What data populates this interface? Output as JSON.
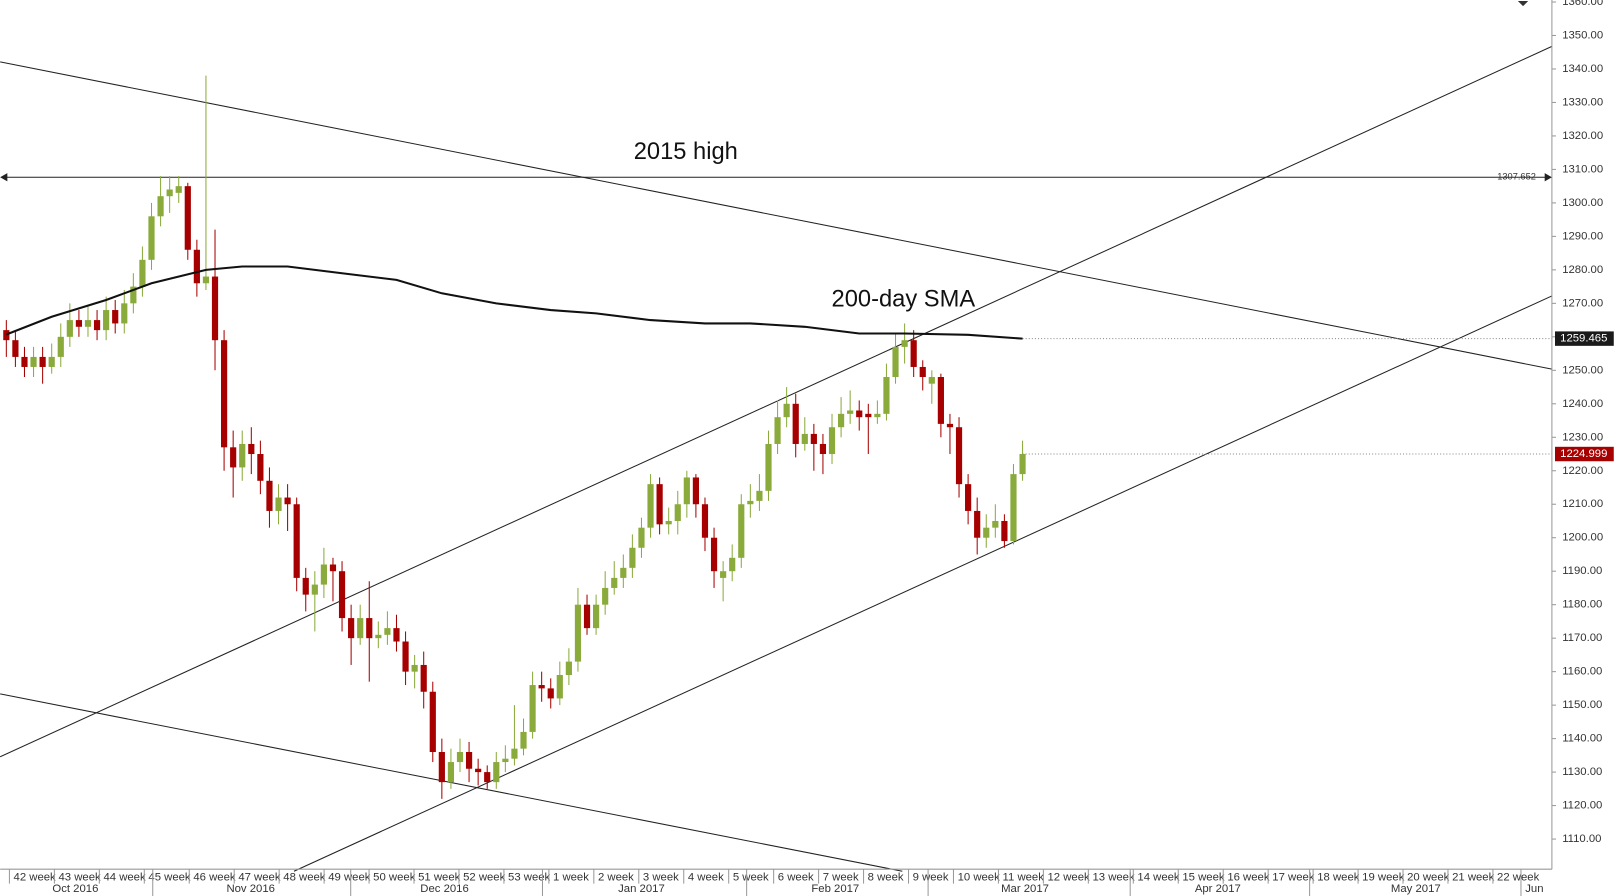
{
  "chart_data": {
    "type": "candlestick",
    "up_color": "#8aab3c",
    "down_color": "#a60000",
    "ylim": [
      1101,
      1360.6
    ],
    "yticks": [
      {
        "value": 1110,
        "label": "1110.00"
      },
      {
        "value": 1120,
        "label": "1120.00"
      },
      {
        "value": 1130,
        "label": "1130.00"
      },
      {
        "value": 1140,
        "label": "1140.00"
      },
      {
        "value": 1150,
        "label": "1150.00"
      },
      {
        "value": 1160,
        "label": "1160.00"
      },
      {
        "value": 1170,
        "label": "1170.00"
      },
      {
        "value": 1180,
        "label": "1180.00"
      },
      {
        "value": 1190,
        "label": "1190.00"
      },
      {
        "value": 1200,
        "label": "1200.00"
      },
      {
        "value": 1210,
        "label": "1210.00"
      },
      {
        "value": 1220,
        "label": "1220.00"
      },
      {
        "value": 1230,
        "label": "1230.00"
      },
      {
        "value": 1240,
        "label": "1240.00"
      },
      {
        "value": 1250,
        "label": "1250.00"
      },
      {
        "value": 1260,
        "label": "1260.00"
      },
      {
        "value": 1270,
        "label": "1270.00"
      },
      {
        "value": 1280,
        "label": "1280.00"
      },
      {
        "value": 1290,
        "label": "1290.00"
      },
      {
        "value": 1300,
        "label": "1300.00"
      },
      {
        "value": 1310,
        "label": "1310.00"
      },
      {
        "value": 1320,
        "label": "1320.00"
      },
      {
        "value": 1330,
        "label": "1330.00"
      },
      {
        "value": 1340,
        "label": "1340.00"
      },
      {
        "value": 1350,
        "label": "1350.00"
      },
      {
        "value": 1360,
        "label": "1360.00"
      }
    ],
    "x_axis": {
      "weeks": [
        "42 week",
        "43 week",
        "44 week",
        "45 week",
        "46 week",
        "47 week",
        "48 week",
        "49 week",
        "50 week",
        "51 week",
        "52 week",
        "53 week",
        "1 week",
        "2 week",
        "3 week",
        "4 week",
        "5 week",
        "6 week",
        "7 week",
        "8 week",
        "9 week",
        "10 week",
        "11 week",
        "12 week",
        "13 week",
        "14 week",
        "15 week",
        "16 week",
        "17 week",
        "18 week",
        "19 week",
        "20 week",
        "21 week",
        "22 week"
      ],
      "months": [
        "Oct 2016",
        "Nov 2016",
        "Dec 2016",
        "Jan 2017",
        "Feb 2017",
        "Mar 2017",
        "Apr 2017",
        "May 2017",
        "Jun"
      ]
    },
    "open": [
      1262,
      1259,
      1254,
      1251,
      1254,
      1251,
      1254,
      1260,
      1265,
      1263,
      1265,
      1262,
      1268,
      1264,
      1270,
      1275,
      1283,
      1296,
      1302,
      1303,
      1305,
      1286,
      1276,
      1278,
      1259,
      1227,
      1221,
      1228,
      1225,
      1217,
      1208,
      1212,
      1210,
      1188,
      1183,
      1186,
      1192,
      1190,
      1176,
      1170,
      1176,
      1170,
      1171,
      1173,
      1169,
      1160,
      1162,
      1154,
      1136,
      1127,
      1133,
      1136,
      1131,
      1130,
      1127,
      1133,
      1134,
      1137,
      1142,
      1156,
      1155,
      1152,
      1159,
      1163,
      1180,
      1173,
      1180,
      1185,
      1188,
      1191,
      1197,
      1203,
      1216,
      1204,
      1205,
      1210,
      1218,
      1210,
      1200,
      1188,
      1190,
      1194,
      1210,
      1211,
      1214,
      1228,
      1236,
      1240,
      1228,
      1231,
      1228,
      1225,
      1233,
      1237,
      1238,
      1237,
      1236,
      1237,
      1248,
      1257,
      1259,
      1251,
      1246,
      1248,
      1234,
      1233,
      1216,
      1208,
      1200,
      1203,
      1205,
      1199,
      1219
    ],
    "high": [
      1265,
      1262,
      1257,
      1257,
      1257,
      1258,
      1264,
      1270,
      1268,
      1269,
      1268,
      1272,
      1271,
      1274,
      1279,
      1287,
      1300,
      1308,
      1308,
      1308,
      1306,
      1289,
      1338,
      1292,
      1262,
      1232,
      1232,
      1233,
      1229,
      1221,
      1216,
      1216,
      1212,
      1191,
      1190,
      1197,
      1194,
      1193,
      1180,
      1180,
      1187,
      1175,
      1178,
      1177,
      1172,
      1165,
      1166,
      1157,
      1140,
      1137,
      1140,
      1139,
      1134,
      1132,
      1136,
      1138,
      1150,
      1146,
      1160,
      1160,
      1158,
      1163,
      1167,
      1185,
      1183,
      1183,
      1190,
      1193,
      1195,
      1201,
      1206,
      1219,
      1218,
      1209,
      1214,
      1220,
      1219,
      1212,
      1203,
      1193,
      1198,
      1213,
      1216,
      1219,
      1232,
      1241,
      1245,
      1243,
      1236,
      1234,
      1231,
      1237,
      1242,
      1244,
      1241,
      1240,
      1241,
      1252,
      1261,
      1264,
      1262,
      1253,
      1250,
      1249,
      1237,
      1236,
      1219,
      1212,
      1207,
      1210,
      1207,
      1222,
      1229
    ],
    "low": [
      1254,
      1251,
      1248,
      1248,
      1246,
      1249,
      1251,
      1257,
      1260,
      1260,
      1259,
      1259,
      1261,
      1261,
      1267,
      1272,
      1280,
      1293,
      1297,
      1300,
      1283,
      1272,
      1274,
      1250,
      1220,
      1212,
      1217,
      1219,
      1213,
      1203,
      1204,
      1202,
      1184,
      1178,
      1172,
      1182,
      1181,
      1172,
      1162,
      1168,
      1157,
      1167,
      1168,
      1166,
      1156,
      1155,
      1149,
      1133,
      1122,
      1125,
      1130,
      1127,
      1126,
      1125,
      1125,
      1130,
      1132,
      1135,
      1140,
      1151,
      1149,
      1150,
      1156,
      1160,
      1171,
      1171,
      1177,
      1183,
      1185,
      1188,
      1194,
      1200,
      1201,
      1201,
      1201,
      1206,
      1206,
      1196,
      1185,
      1181,
      1187,
      1191,
      1206,
      1208,
      1211,
      1225,
      1233,
      1224,
      1226,
      1220,
      1219,
      1222,
      1230,
      1234,
      1232,
      1225,
      1234,
      1235,
      1246,
      1252,
      1248,
      1244,
      1240,
      1230,
      1225,
      1212,
      1204,
      1195,
      1197,
      1200,
      1197,
      1198,
      1217
    ],
    "close": [
      1259,
      1254,
      1251,
      1254,
      1251,
      1254,
      1260,
      1265,
      1263,
      1265,
      1262,
      1268,
      1264,
      1270,
      1275,
      1283,
      1296,
      1302,
      1304,
      1305,
      1286,
      1276,
      1278,
      1259,
      1227,
      1221,
      1228,
      1225,
      1217,
      1208,
      1212,
      1210,
      1188,
      1183,
      1186,
      1192,
      1190,
      1176,
      1170,
      1176,
      1170,
      1171,
      1173,
      1169,
      1160,
      1162,
      1154,
      1136,
      1127,
      1133,
      1136,
      1131,
      1130,
      1127,
      1133,
      1134,
      1137,
      1142,
      1156,
      1155,
      1152,
      1159,
      1163,
      1180,
      1173,
      1180,
      1185,
      1188,
      1191,
      1197,
      1203,
      1216,
      1204,
      1205,
      1210,
      1218,
      1210,
      1200,
      1190,
      1190,
      1194,
      1210,
      1211,
      1214,
      1228,
      1236,
      1240,
      1228,
      1231,
      1228,
      1225,
      1233,
      1237,
      1238,
      1236,
      1236,
      1237,
      1248,
      1257,
      1259,
      1251,
      1248,
      1248,
      1234,
      1233,
      1216,
      1208,
      1200,
      1203,
      1205,
      1199,
      1219,
      1225
    ],
    "last_price": {
      "value": 1224.999,
      "label": "1224.999"
    },
    "sma": {
      "name": "200-day SMA",
      "color": "#111111",
      "x": [
        0,
        5,
        11,
        16,
        22,
        26,
        31,
        37,
        43,
        48,
        54,
        60,
        65,
        71,
        77,
        82,
        88,
        94,
        99,
        106,
        112
      ],
      "values": [
        1260.7,
        1266,
        1271,
        1276,
        1280,
        1281,
        1281,
        1279,
        1277,
        1273,
        1270,
        1268,
        1267,
        1265,
        1264,
        1264,
        1263,
        1261,
        1261,
        1260.6,
        1259.465
      ],
      "last": {
        "value": 1259.465,
        "label": "1259.465"
      }
    },
    "level": {
      "text": "2015 high",
      "value": 1307.652,
      "label": "1307.652"
    }
  }
}
